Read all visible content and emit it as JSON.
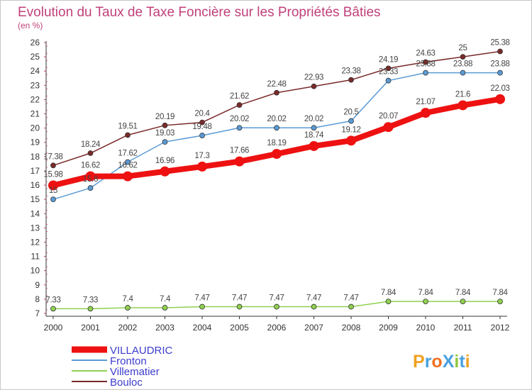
{
  "chart_data": {
    "type": "line",
    "title": "Evolution du Taux de Taxe Foncière sur les Propriétés Bâties",
    "subtitle": "(en %)",
    "xlabel": "",
    "ylabel": "",
    "categories": [
      "2000",
      "2001",
      "2002",
      "2003",
      "2004",
      "2005",
      "2006",
      "2007",
      "2008",
      "2009",
      "2010",
      "2011",
      "2012"
    ],
    "ylim": [
      7,
      26
    ],
    "yticks": [
      "7",
      "8",
      "9",
      "10",
      "11",
      "12",
      "13",
      "14",
      "15",
      "16",
      "17",
      "18",
      "19",
      "20",
      "21",
      "22",
      "23",
      "24",
      "25",
      "26"
    ],
    "grid": false,
    "legend_position": "bottom-left",
    "series": [
      {
        "name": "Bouloc",
        "color": "#7a2a2a",
        "values": [
          17.38,
          18.24,
          19.51,
          20.19,
          20.4,
          21.62,
          22.48,
          22.93,
          23.38,
          24.19,
          24.63,
          25,
          25.38
        ],
        "labels": [
          "17.38",
          "18.24",
          "19.51",
          "20.19",
          "20.4",
          "21.62",
          "22.48",
          "22.93",
          "23.38",
          "24.19",
          "24.63",
          "25",
          "25.38"
        ]
      },
      {
        "name": "Fronton",
        "color": "#5a9bd5",
        "values": [
          15,
          15.8,
          17.62,
          19.03,
          19.48,
          20.02,
          20.02,
          20.02,
          20.5,
          23.33,
          23.88,
          23.88,
          23.88
        ],
        "labels": [
          "15",
          "15.8",
          "17.62",
          "19.03",
          "19.48",
          "20.02",
          "20.02",
          "20.02",
          "20.5",
          "23.33",
          "23.88",
          "23.88",
          "23.88"
        ]
      },
      {
        "name": "Villematier",
        "color": "#8fd14f",
        "values": [
          7.33,
          7.33,
          7.4,
          7.4,
          7.47,
          7.47,
          7.47,
          7.47,
          7.47,
          7.84,
          7.84,
          7.84,
          7.84
        ],
        "labels": [
          "7.33",
          "7.33",
          "7.4",
          "7.4",
          "7.47",
          "7.47",
          "7.47",
          "7.47",
          "7.47",
          "7.84",
          "7.84",
          "7.84",
          "7.84"
        ]
      },
      {
        "name": "VILLAUDRIC",
        "color": "#ee1111",
        "values": [
          15.98,
          16.62,
          16.62,
          16.96,
          17.3,
          17.66,
          18.19,
          18.74,
          19.12,
          20.07,
          21.07,
          21.6,
          22.03
        ],
        "labels": [
          "15.98",
          "16.62",
          "16.62",
          "16.96",
          "17.3",
          "17.66",
          "18.19",
          "18.74",
          "19.12",
          "20.07",
          "21.07",
          "21.6",
          "22.03"
        ]
      }
    ],
    "legend_order": [
      "VILLAUDRIC",
      "Fronton",
      "Villematier",
      "Bouloc"
    ],
    "label_color": "#3d3dcc"
  },
  "logo": {
    "text": "ProXiti"
  }
}
